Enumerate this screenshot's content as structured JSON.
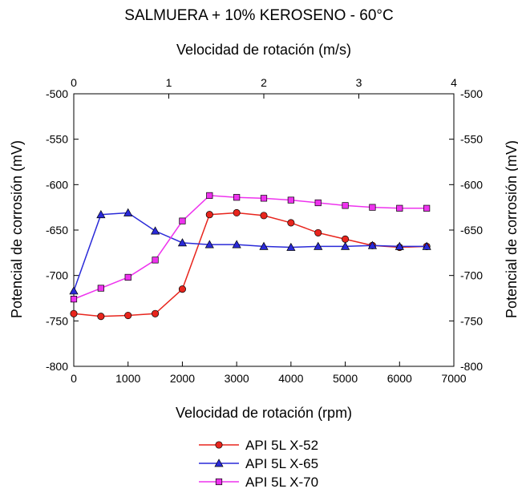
{
  "chart_data": {
    "type": "line",
    "title": "SALMUERA + 10% KEROSENO - 60°C",
    "xlabel": "Velocidad de rotación (rpm)",
    "x2label": "Velocidad de rotación (m/s)",
    "ylabel": "Potencial de corrosión (mV)",
    "y2label": "Potencial de corrosión (mV)",
    "xlim": [
      0,
      7000
    ],
    "ylim": [
      -800,
      -500
    ],
    "x2lim": [
      0,
      4
    ],
    "x_ticks": [
      0,
      1000,
      2000,
      3000,
      4000,
      5000,
      6000,
      7000
    ],
    "y_ticks": [
      -500,
      -550,
      -600,
      -650,
      -700,
      -750,
      -800
    ],
    "x2_ticks": [
      0,
      1,
      2,
      3,
      4
    ],
    "grid": false,
    "legend_position": "bottom",
    "x": [
      0,
      500,
      1000,
      1500,
      2000,
      2500,
      3000,
      3500,
      4000,
      4500,
      5000,
      5500,
      6000,
      6500
    ],
    "series": [
      {
        "name": "API 5L X-52",
        "color": "#e8251d",
        "marker": "circle",
        "values": [
          -742,
          -745,
          -744,
          -742,
          -715,
          -633,
          -631,
          -634,
          -642,
          -653,
          -660,
          -667,
          -669,
          -668
        ]
      },
      {
        "name": "API 5L X-65",
        "color": "#2a2ad8",
        "marker": "triangle",
        "values": [
          -717,
          -633,
          -631,
          -651,
          -664,
          -666,
          -666,
          -668,
          -669,
          -668,
          -668,
          -667,
          -668,
          -668
        ]
      },
      {
        "name": "API 5L X-70",
        "color": "#ee33ee",
        "marker": "square",
        "values": [
          -726,
          -714,
          -702,
          -683,
          -640,
          -612,
          -614,
          -615,
          -617,
          -620,
          -623,
          -625,
          -626,
          -626
        ]
      }
    ]
  }
}
